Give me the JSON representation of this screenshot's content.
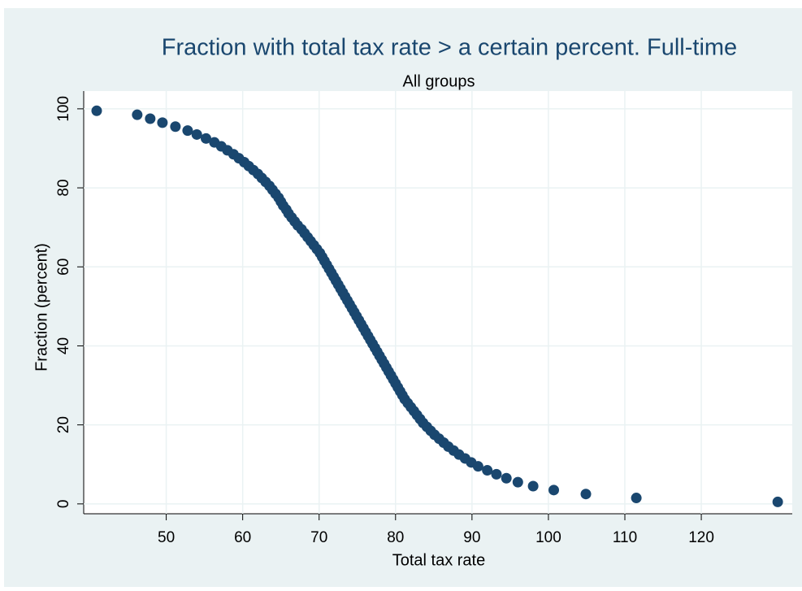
{
  "chart_data": {
    "type": "scatter",
    "title": "Fraction with total tax rate > a certain percent. Full-time",
    "subtitle": "All groups",
    "x_label": "Total tax rate",
    "y_label": "Fraction (percent)",
    "x": [
      40.9,
      46.2,
      47.9,
      49.5,
      51.2,
      52.8,
      54.0,
      55.2,
      56.3,
      57.2,
      58.0,
      58.8,
      59.5,
      60.2,
      60.8,
      61.4,
      62.0,
      62.5,
      63.0,
      63.5,
      63.9,
      64.3,
      64.7,
      65.0,
      65.3,
      65.7,
      66.0,
      66.4,
      66.8,
      67.2,
      67.7,
      68.1,
      68.5,
      68.9,
      69.3,
      69.7,
      70.1,
      70.4,
      70.7,
      71.0,
      71.3,
      71.6,
      71.9,
      72.2,
      72.5,
      72.8,
      73.1,
      73.4,
      73.7,
      74.0,
      74.3,
      74.6,
      74.9,
      75.2,
      75.5,
      75.8,
      76.1,
      76.4,
      76.7,
      77.0,
      77.3,
      77.6,
      77.9,
      78.2,
      78.5,
      78.8,
      79.1,
      79.4,
      79.7,
      80.0,
      80.3,
      80.6,
      80.9,
      81.2,
      81.6,
      82.0,
      82.4,
      82.8,
      83.2,
      83.6,
      84.1,
      84.6,
      85.1,
      85.7,
      86.3,
      86.9,
      87.6,
      88.3,
      89.1,
      89.9,
      90.8,
      92.0,
      93.2,
      94.5,
      96.0,
      98.0,
      100.7,
      104.9,
      111.5,
      130.0
    ],
    "series": [
      {
        "color": "#1a476f",
        "values": [
          99.5,
          98.5,
          97.5,
          96.5,
          95.5,
          94.5,
          93.5,
          92.5,
          91.5,
          90.5,
          89.5,
          88.5,
          87.5,
          86.5,
          85.5,
          84.5,
          83.5,
          82.5,
          81.5,
          80.5,
          79.5,
          78.5,
          77.5,
          76.5,
          75.5,
          74.5,
          73.5,
          72.5,
          71.5,
          70.5,
          69.5,
          68.5,
          67.5,
          66.5,
          65.5,
          64.5,
          63.5,
          62.5,
          61.5,
          60.5,
          59.5,
          58.5,
          57.5,
          56.5,
          55.5,
          54.5,
          53.5,
          52.5,
          51.5,
          50.5,
          49.5,
          48.5,
          47.5,
          46.5,
          45.5,
          44.5,
          43.5,
          42.5,
          41.5,
          40.5,
          39.5,
          38.5,
          37.5,
          36.5,
          35.5,
          34.5,
          33.5,
          32.5,
          31.5,
          30.5,
          29.5,
          28.5,
          27.5,
          26.5,
          25.5,
          24.5,
          23.5,
          22.5,
          21.5,
          20.5,
          19.5,
          18.5,
          17.5,
          16.5,
          15.5,
          14.5,
          13.5,
          12.5,
          11.5,
          10.5,
          9.5,
          8.5,
          7.5,
          6.5,
          5.5,
          4.5,
          3.5,
          2.5,
          1.5,
          0.5
        ]
      }
    ],
    "xlim": [
      39.2,
      131.9
    ],
    "xticks": [
      50,
      60,
      70,
      80,
      90,
      100,
      110,
      120
    ],
    "ylim": [
      -2.5,
      104.5
    ],
    "yticks": [
      0,
      20,
      40,
      60,
      80,
      100
    ],
    "grid": true
  }
}
